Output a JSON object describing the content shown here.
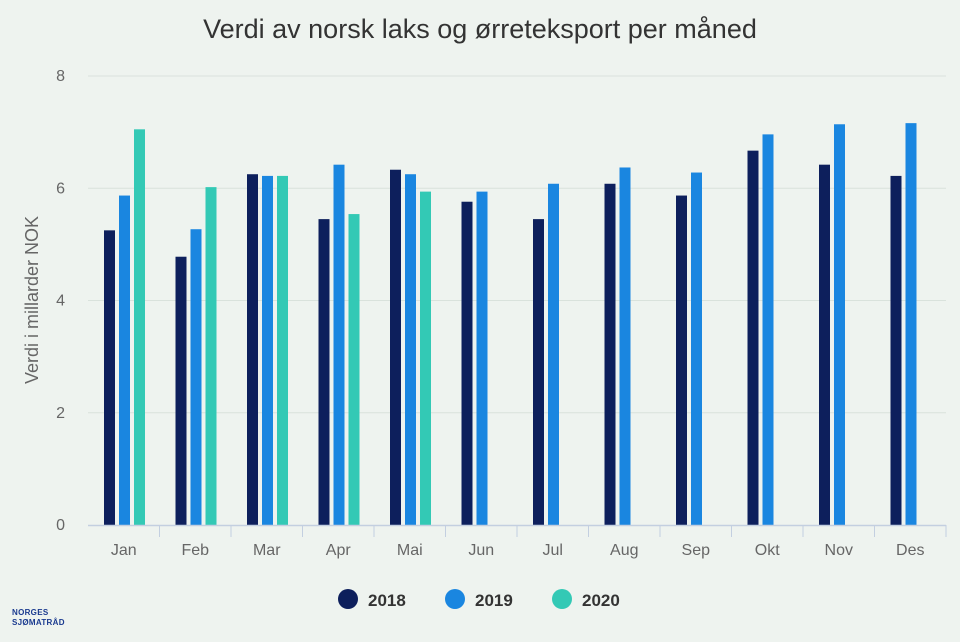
{
  "logo": {
    "line1": "NORGES",
    "line2": "SJØMATRÅD"
  },
  "chart_data": {
    "type": "bar",
    "title": "Verdi av norsk laks og ørreteksport per måned",
    "ylabel": "Verdi i millarder NOK",
    "xlabel": "",
    "ylim": [
      0,
      8
    ],
    "yticks": [
      0,
      2,
      4,
      6,
      8
    ],
    "grid": true,
    "legend_position": "bottom",
    "categories": [
      "Jan",
      "Feb",
      "Mar",
      "Apr",
      "Mai",
      "Jun",
      "Jul",
      "Aug",
      "Sep",
      "Okt",
      "Nov",
      "Des"
    ],
    "series": [
      {
        "name": "2018",
        "color": "#0d1f5c",
        "values": [
          5.25,
          4.78,
          6.25,
          5.45,
          6.33,
          5.76,
          5.45,
          6.08,
          5.87,
          6.67,
          6.42,
          6.22
        ]
      },
      {
        "name": "2019",
        "color": "#1a86e0",
        "values": [
          5.87,
          5.27,
          6.22,
          6.42,
          6.25,
          5.94,
          6.08,
          6.37,
          6.28,
          6.96,
          7.14,
          7.16
        ]
      },
      {
        "name": "2020",
        "color": "#33c9b5",
        "values": [
          7.05,
          6.02,
          6.22,
          5.54,
          5.94,
          null,
          null,
          null,
          null,
          null,
          null,
          null
        ]
      }
    ]
  }
}
